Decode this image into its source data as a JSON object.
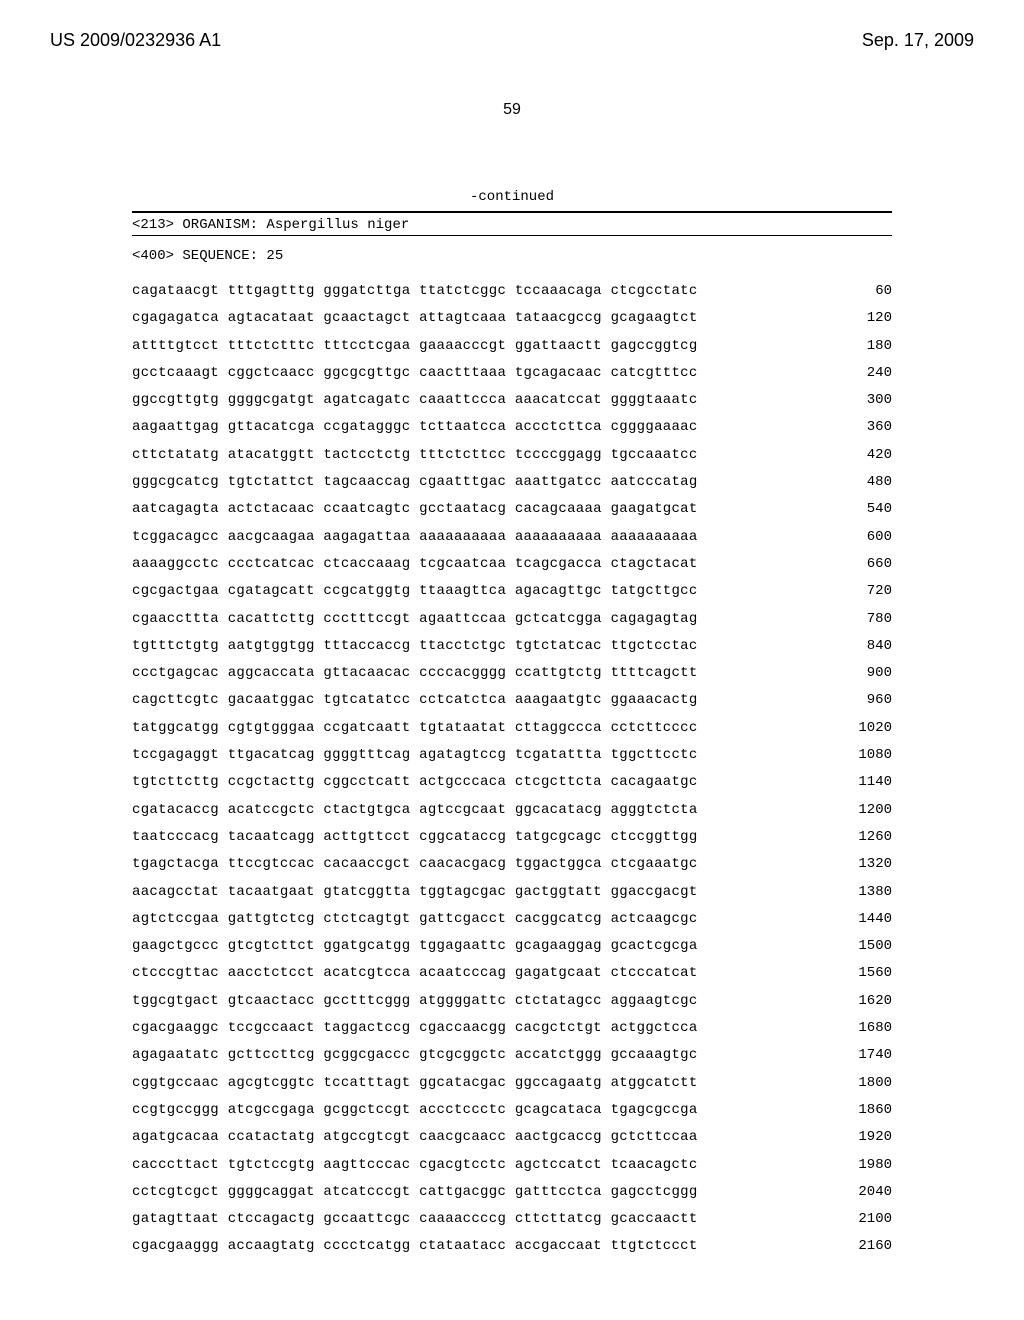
{
  "header": {
    "publication_number": "US 2009/0232936 A1",
    "publication_date": "Sep. 17, 2009",
    "page_number": "59"
  },
  "continued_label": "-continued",
  "organism_line": "<213> ORGANISM: Aspergillus niger",
  "sequence_id_line": "<400> SEQUENCE: 25",
  "rows": [
    {
      "b": "cagataacgt tttgagtttg gggatcttga ttatctcggc tccaaacaga ctcgcctatc",
      "p": "60"
    },
    {
      "b": "cgagagatca agtacataat gcaactagct attagtcaaa tataacgccg gcagaagtct",
      "p": "120"
    },
    {
      "b": "attttgtcct tttctctttc tttcctcgaa gaaaacccgt ggattaactt gagccggtcg",
      "p": "180"
    },
    {
      "b": "gcctcaaagt cggctcaacc ggcgcgttgc caactttaaa tgcagacaac catcgtttcc",
      "p": "240"
    },
    {
      "b": "ggccgttgtg ggggcgatgt agatcagatc caaattccca aaacatccat ggggtaaatc",
      "p": "300"
    },
    {
      "b": "aagaattgag gttacatcga ccgatagggc tcttaatcca accctcttca cggggaaaac",
      "p": "360"
    },
    {
      "b": "cttctatatg atacatggtt tactcctctg tttctcttcc tccccggagg tgccaaatcc",
      "p": "420"
    },
    {
      "b": "gggcgcatcg tgtctattct tagcaaccag cgaatttgac aaattgatcc aatcccatag",
      "p": "480"
    },
    {
      "b": "aatcagagta actctacaac ccaatcagtc gcctaatacg cacagcaaaa gaagatgcat",
      "p": "540"
    },
    {
      "b": "tcggacagcc aacgcaagaa aagagattaa aaaaaaaaaa aaaaaaaaaa aaaaaaaaaa",
      "p": "600"
    },
    {
      "b": "aaaaggcctc ccctcatcac ctcaccaaag tcgcaatcaa tcagcgacca ctagctacat",
      "p": "660"
    },
    {
      "b": "cgcgactgaa cgatagcatt ccgcatggtg ttaaagttca agacagttgc tatgcttgcc",
      "p": "720"
    },
    {
      "b": "cgaaccttta cacattcttg ccctttccgt agaattccaa gctcatcgga cagagagtag",
      "p": "780"
    },
    {
      "b": "tgtttctgtg aatgtggtgg tttaccaccg ttacctctgc tgtctatcac ttgctcctac",
      "p": "840"
    },
    {
      "b": "ccctgagcac aggcaccata gttacaacac ccccacgggg ccattgtctg ttttcagctt",
      "p": "900"
    },
    {
      "b": "cagcttcgtc gacaatggac tgtcatatcc cctcatctca aaagaatgtc ggaaacactg",
      "p": "960"
    },
    {
      "b": "tatggcatgg cgtgtgggaa ccgatcaatt tgtataatat cttaggccca cctcttcccc",
      "p": "1020"
    },
    {
      "b": "tccgagaggt ttgacatcag ggggtttcag agatagtccg tcgatattta tggcttcctc",
      "p": "1080"
    },
    {
      "b": "tgtcttcttg ccgctacttg cggcctcatt actgcccaca ctcgcttcta cacagaatgc",
      "p": "1140"
    },
    {
      "b": "cgatacaccg acatccgctc ctactgtgca agtccgcaat ggcacatacg agggtctcta",
      "p": "1200"
    },
    {
      "b": "taatcccacg tacaatcagg acttgttcct cggcataccg tatgcgcagc ctccggttgg",
      "p": "1260"
    },
    {
      "b": "tgagctacga ttccgtccac cacaaccgct caacacgacg tggactggca ctcgaaatgc",
      "p": "1320"
    },
    {
      "b": "aacagcctat tacaatgaat gtatcggtta tggtagcgac gactggtatt ggaccgacgt",
      "p": "1380"
    },
    {
      "b": "agtctccgaa gattgtctcg ctctcagtgt gattcgacct cacggcatcg actcaagcgc",
      "p": "1440"
    },
    {
      "b": "gaagctgccc gtcgtcttct ggatgcatgg tggagaattc gcagaaggag gcactcgcga",
      "p": "1500"
    },
    {
      "b": "ctcccgttac aacctctcct acatcgtcca acaatcccag gagatgcaat ctcccatcat",
      "p": "1560"
    },
    {
      "b": "tggcgtgact gtcaactacc gcctttcggg atggggattc ctctatagcc aggaagtcgc",
      "p": "1620"
    },
    {
      "b": "cgacgaaggc tccgccaact taggactccg cgaccaacgg cacgctctgt actggctcca",
      "p": "1680"
    },
    {
      "b": "agagaatatc gcttccttcg gcggcgaccc gtcgcggctc accatctggg gccaaagtgc",
      "p": "1740"
    },
    {
      "b": "cggtgccaac agcgtcggtc tccatttagt ggcatacgac ggccagaatg atggcatctt",
      "p": "1800"
    },
    {
      "b": "ccgtgccggg atcgccgaga gcggctccgt accctccctc gcagcataca tgagcgccga",
      "p": "1860"
    },
    {
      "b": "agatgcacaa ccatactatg atgccgtcgt caacgcaacc aactgcaccg gctcttccaa",
      "p": "1920"
    },
    {
      "b": "cacccttact tgtctccgtg aagttcccac cgacgtcctc agctccatct tcaacagctc",
      "p": "1980"
    },
    {
      "b": "cctcgtcgct ggggcaggat atcatcccgt cattgacggc gatttcctca gagcctcggg",
      "p": "2040"
    },
    {
      "b": "gatagttaat ctccagactg gccaattcgc caaaaccccg cttcttatcg gcaccaactt",
      "p": "2100"
    },
    {
      "b": "cgacgaaggg accaagtatg cccctcatgg ctataatacc accgaccaat ttgtctccct",
      "p": "2160"
    }
  ]
}
